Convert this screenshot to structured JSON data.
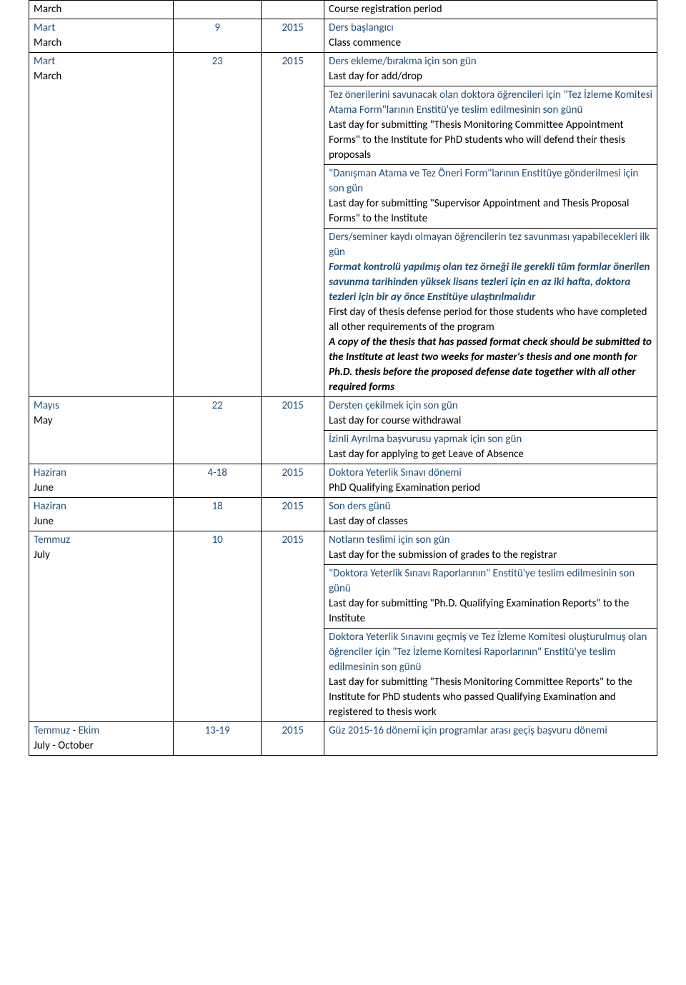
{
  "rows": [
    {
      "month_tr": "",
      "month_en": "March",
      "day": "",
      "year": "",
      "items": [
        {
          "tr": "",
          "en": "Course registration period"
        }
      ]
    },
    {
      "month_tr": "Mart",
      "month_en": "March",
      "day": "9",
      "year": "2015",
      "items": [
        {
          "tr": "Ders başlangıcı",
          "en": "Class commence"
        }
      ]
    },
    {
      "month_tr": "Mart",
      "month_en": "March",
      "day": "23",
      "year": "2015",
      "items": [
        {
          "tr": "Ders ekleme/bırakma için son gün",
          "en": "Last day for add/drop"
        },
        {
          "tr": "Tez önerilerini savunacak olan doktora öğrencileri için \"Tez İzleme Komitesi Atama Form\"larının Enstitü'ye teslim edilmesinin son günü",
          "tr_justify": true,
          "en": "Last day for submitting \"Thesis Monitoring Committee Appointment Forms\" to the Institute for PhD students who will defend their thesis proposals"
        },
        {
          "tr": "\"Danışman Atama ve Tez Öneri Form\"larının Enstitüye gönderilmesi için son gün",
          "en": "Last day for submitting \"Supervisor Appointment and Thesis Proposal Forms\" to the Institute"
        },
        {
          "tr": "Ders/seminer kaydı olmayan öğrencilerin tez savunması yapabilecekleri ilk gün",
          "tr_note": "Format kontrolü yapılmış olan tez örneği ile gerekli tüm formlar önerilen savunma tarihinden yüksek lisans tezleri için en az iki hafta, doktora tezleri için bir ay önce Enstitüye ulaştırılmalıdır",
          "en": "First day of thesis defense period for those students who have completed all other requirements of the program",
          "en_note": "A copy of the thesis that has passed format check should be submitted to the Institute at least two weeks for master's thesis and one month for Ph.D. thesis before the proposed defense date together with all other required forms"
        }
      ]
    },
    {
      "month_tr": "Mayıs",
      "month_en": "May",
      "day": "22",
      "year": "2015",
      "items": [
        {
          "tr": "Dersten çekilmek için son gün",
          "en": "Last day for course withdrawal"
        },
        {
          "tr": "İzinli Ayrılma başvurusu yapmak için son gün",
          "en": "Last day for applying to get Leave of Absence"
        }
      ]
    },
    {
      "month_tr": "Haziran",
      "month_en": "June",
      "day": "4-18",
      "year": "2015",
      "items": [
        {
          "tr": "Doktora Yeterlik Sınavı dönemi",
          "en": "PhD Qualifying Examination period"
        }
      ]
    },
    {
      "month_tr": "Haziran",
      "month_en": "June",
      "day": "18",
      "year": "2015",
      "items": [
        {
          "tr": "Son ders günü",
          "en": "Last day of classes"
        }
      ]
    },
    {
      "month_tr": "Temmuz",
      "month_en": "July",
      "day": "10",
      "year": "2015",
      "items": [
        {
          "tr": "Notların teslimi için son gün",
          "en": "Last day for the submission of grades to the registrar"
        },
        {
          "tr": "\"Doktora Yeterlik Sınavı Raporlarının\" Enstitü'ye teslim edilmesinin son günü",
          "en": "Last day for submitting \"Ph.D. Qualifying Examination Reports\" to the Institute"
        },
        {
          "tr": "Doktora Yeterlik Sınavını geçmiş ve Tez İzleme Komitesi oluşturulmuş olan öğrenciler için \"Tez İzleme Komitesi Raporlarının\" Enstitü'ye teslim edilmesinin son günü",
          "en": "Last day for submitting \"Thesis Monitoring Committee Reports\" to the Institute for PhD students who passed Qualifying Examination and registered to thesis work"
        }
      ]
    },
    {
      "month_tr": "Temmuz - Ekim",
      "month_en": "July - October",
      "day": "13-19",
      "year": "2015",
      "items": [
        {
          "tr": "Güz 2015-16 dönemi için programlar arası geçiş başvuru dönemi",
          "en": ""
        }
      ]
    }
  ]
}
